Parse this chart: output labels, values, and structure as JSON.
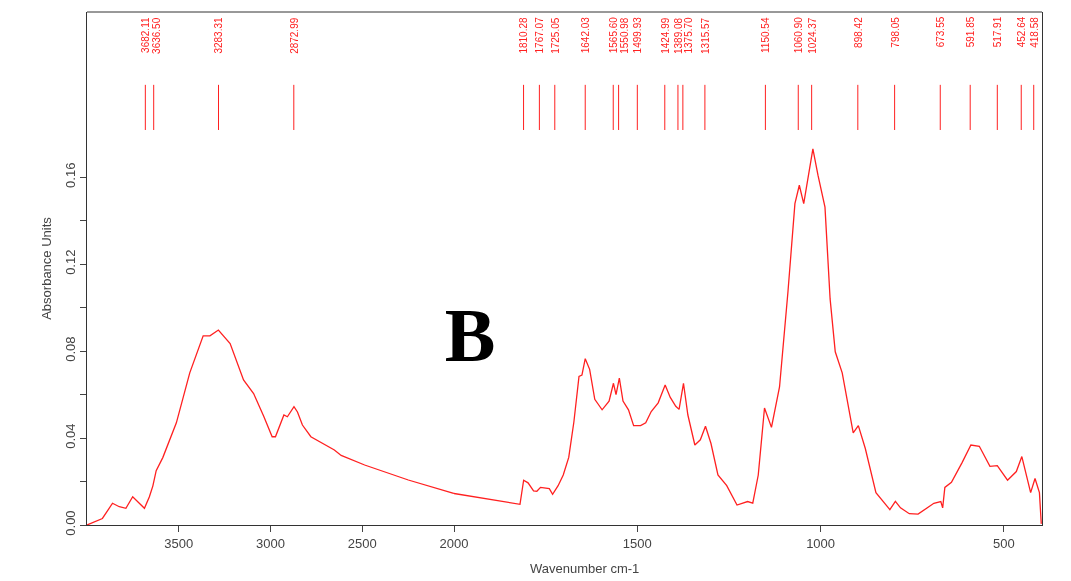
{
  "chart_data": [
    {
      "type": "line",
      "ylabel": "Absorbance Units",
      "xlim": [
        4000,
        2000
      ],
      "xticks": [
        3500,
        3000,
        2500,
        2000
      ],
      "ylim": [
        0,
        0.236
      ],
      "yticks": [
        {
          "value": 0,
          "label": "0.00"
        },
        {
          "value": 0.02,
          "label": null
        },
        {
          "value": 0.04,
          "label": "0.04"
        },
        {
          "value": 0.06,
          "label": null
        },
        {
          "value": 0.08,
          "label": "0.08"
        },
        {
          "value": 0.1,
          "label": null
        },
        {
          "value": 0.12,
          "label": "0.12"
        },
        {
          "value": 0.14,
          "label": null
        },
        {
          "value": 0.16,
          "label": "0.16"
        }
      ],
      "grid": false,
      "marker": "none",
      "line_style": "solid",
      "x": [
        4000,
        3916,
        3861,
        3824,
        3788,
        3751,
        3687,
        3660,
        3641,
        3623,
        3587,
        3513,
        3440,
        3367,
        3330,
        3284,
        3220,
        3147,
        3092,
        3037,
        2991,
        2973,
        2927,
        2908,
        2872,
        2853,
        2826,
        2780,
        2652,
        2615,
        2487,
        2249,
        2002,
        2000
      ],
      "series": [
        {
          "color": "#ff2020",
          "values": [
            0,
            0.003,
            0.01,
            0.0084,
            0.0077,
            0.013,
            0.0077,
            0.013,
            0.018,
            0.025,
            0.031,
            0.047,
            0.07,
            0.087,
            0.087,
            0.0897,
            0.0835,
            0.0667,
            0.0605,
            0.05,
            0.0406,
            0.0406,
            0.0506,
            0.0498,
            0.0544,
            0.052,
            0.046,
            0.0406,
            0.0345,
            0.032,
            0.0276,
            0.0207,
            0.0146,
            0.0145
          ]
        }
      ],
      "ref_lines": [
        {
          "axis": "x",
          "value": 3682.11,
          "label": "3682.11",
          "color": "#ff2020"
        },
        {
          "axis": "x",
          "value": 3636.5,
          "label": "3636.50",
          "color": "#ff2020"
        },
        {
          "axis": "x",
          "value": 3283.31,
          "label": "3283.31",
          "color": "#ff2020"
        },
        {
          "axis": "x",
          "value": 2872.99,
          "label": "2872.99",
          "color": "#ff2020"
        }
      ]
    },
    {
      "type": "line",
      "xlabel": "Wavenumber cm-1",
      "xlim": [
        2000,
        396
      ],
      "xticks": [
        1500,
        1000,
        500
      ],
      "ylim": [
        0,
        0.236
      ],
      "tick_labels": "x",
      "grid": false,
      "marker": "none",
      "line_style": "solid",
      "x": [
        2000,
        1820,
        1810,
        1798,
        1783,
        1774,
        1764,
        1740,
        1731,
        1716,
        1702,
        1687,
        1673,
        1659,
        1651,
        1642,
        1630,
        1616,
        1596,
        1577,
        1565,
        1558,
        1549,
        1539,
        1524,
        1510,
        1491,
        1477,
        1462,
        1443,
        1424,
        1410,
        1395,
        1386,
        1374,
        1362,
        1343,
        1328,
        1314,
        1299,
        1280,
        1256,
        1228,
        1199,
        1185,
        1170,
        1153,
        1134,
        1112,
        1089,
        1070,
        1058,
        1046,
        1021,
        1007,
        988,
        974,
        960,
        941,
        911,
        897,
        878,
        849,
        811,
        796,
        782,
        758,
        734,
        691,
        672,
        667,
        661,
        643,
        614,
        590,
        567,
        538,
        518,
        490,
        466,
        451,
        427,
        415,
        403,
        398
      ],
      "series": [
        {
          "color": "#ff2020",
          "values": [
            0.0145,
            0.0095,
            0.0206,
            0.0194,
            0.0157,
            0.0155,
            0.0173,
            0.0167,
            0.0141,
            0.0181,
            0.023,
            0.0311,
            0.0474,
            0.0684,
            0.069,
            0.0765,
            0.0716,
            0.0578,
            0.053,
            0.057,
            0.0652,
            0.06,
            0.0676,
            0.057,
            0.053,
            0.0457,
            0.0457,
            0.047,
            0.0522,
            0.0562,
            0.0644,
            0.0587,
            0.0546,
            0.0532,
            0.0652,
            0.0506,
            0.0368,
            0.0392,
            0.0454,
            0.0375,
            0.023,
            0.0181,
            0.0092,
            0.0108,
            0.0101,
            0.023,
            0.0538,
            0.0449,
            0.0635,
            0.1073,
            0.1478,
            0.1563,
            0.1478,
            0.173,
            0.1608,
            0.1462,
            0.104,
            0.0797,
            0.07,
            0.0424,
            0.0457,
            0.0352,
            0.0149,
            0.0071,
            0.0109,
            0.0079,
            0.0052,
            0.005,
            0.01,
            0.0108,
            0.0079,
            0.0173,
            0.0196,
            0.0287,
            0.0368,
            0.0362,
            0.027,
            0.0273,
            0.0206,
            0.0246,
            0.0315,
            0.0149,
            0.0214,
            0.0149,
            0.0005
          ]
        }
      ],
      "annotations": [
        "B"
      ],
      "ref_lines": [
        {
          "axis": "x",
          "value": 1810.28,
          "label": "1810.28",
          "color": "#ff2020"
        },
        {
          "axis": "x",
          "value": 1767.07,
          "label": "1767.07",
          "color": "#ff2020"
        },
        {
          "axis": "x",
          "value": 1725.05,
          "label": "1725.05",
          "color": "#ff2020"
        },
        {
          "axis": "x",
          "value": 1642.03,
          "label": "1642.03",
          "color": "#ff2020"
        },
        {
          "axis": "x",
          "value": 1565.6,
          "label": "1565.60",
          "color": "#ff2020"
        },
        {
          "axis": "x",
          "value": 1550.98,
          "label": "1550.98",
          "color": "#ff2020"
        },
        {
          "axis": "x",
          "value": 1499.93,
          "label": "1499.93",
          "color": "#ff2020"
        },
        {
          "axis": "x",
          "value": 1424.99,
          "label": "1424.99",
          "color": "#ff2020"
        },
        {
          "axis": "x",
          "value": 1389.08,
          "label": "1389.08",
          "color": "#ff2020"
        },
        {
          "axis": "x",
          "value": 1375.7,
          "label": "1375.70",
          "color": "#ff2020"
        },
        {
          "axis": "x",
          "value": 1315.57,
          "label": "1315.57",
          "color": "#ff2020"
        },
        {
          "axis": "x",
          "value": 1150.54,
          "label": "1150.54",
          "color": "#ff2020"
        },
        {
          "axis": "x",
          "value": 1060.9,
          "label": "1060.90",
          "color": "#ff2020"
        },
        {
          "axis": "x",
          "value": 1024.37,
          "label": "1024.37",
          "color": "#ff2020"
        },
        {
          "axis": "x",
          "value": 898.42,
          "label": "898.42",
          "color": "#ff2020"
        },
        {
          "axis": "x",
          "value": 798.05,
          "label": "798.05",
          "color": "#ff2020"
        },
        {
          "axis": "x",
          "value": 673.55,
          "label": "673.55",
          "color": "#ff2020"
        },
        {
          "axis": "x",
          "value": 591.85,
          "label": "591.85",
          "color": "#ff2020"
        },
        {
          "axis": "x",
          "value": 517.91,
          "label": "517.91",
          "color": "#ff2020"
        },
        {
          "axis": "x",
          "value": 452.64,
          "label": "452.64",
          "color": "#ff2020"
        },
        {
          "axis": "x",
          "value": 418.58,
          "label": "418.58",
          "color": "#ff2020"
        }
      ]
    }
  ]
}
